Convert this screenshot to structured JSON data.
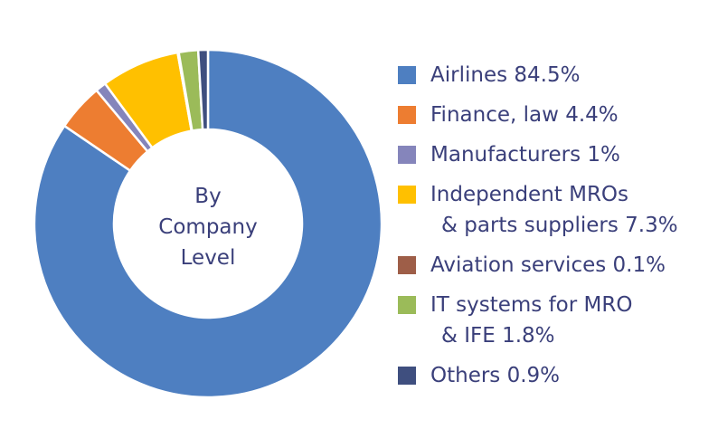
{
  "chart_data": {
    "type": "donut",
    "center_label": "By\nCompany\nLevel",
    "categories": [
      "Airlines",
      "Finance, law",
      "Manufacturers",
      "Independent MROs\n& parts suppliers",
      "Aviation services",
      "IT systems for MRO\n& IFE",
      "Others"
    ],
    "values": [
      84.5,
      4.4,
      1,
      7.3,
      0.1,
      1.8,
      0.9
    ],
    "value_labels": [
      "84.5%",
      "4.4%",
      "1%",
      "7.3%",
      "0.1%",
      "1.8%",
      "0.9%"
    ],
    "colors": [
      "#4e7fc1",
      "#ed7d31",
      "#8585bb",
      "#ffc000",
      "#9e5e48",
      "#9bbb59",
      "#3f4f7f"
    ],
    "legend": "right"
  }
}
